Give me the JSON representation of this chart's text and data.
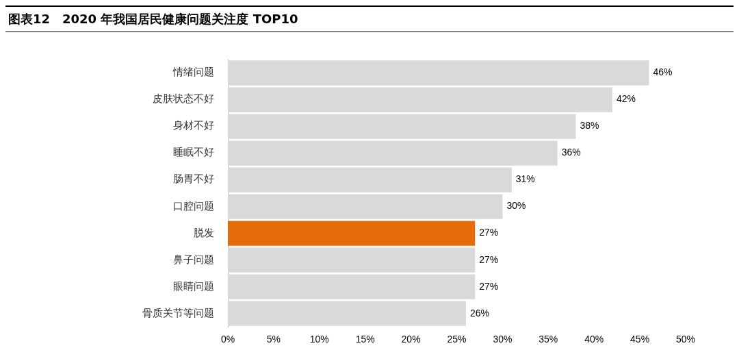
{
  "chart_data": {
    "type": "bar",
    "orientation": "horizontal",
    "title": "图表12　2020 年我国居民健康问题关注度 TOP10",
    "categories": [
      "情绪问题",
      "皮肤状态不好",
      "身材不好",
      "睡眠不好",
      "肠胃不好",
      "口腔问题",
      "脱发",
      "鼻子问题",
      "眼睛问题",
      "骨质关节等问题"
    ],
    "values": [
      46,
      42,
      38,
      36,
      31,
      30,
      27,
      27,
      27,
      26
    ],
    "colors": [
      "#d9d9d9",
      "#d9d9d9",
      "#d9d9d9",
      "#d9d9d9",
      "#d9d9d9",
      "#d9d9d9",
      "#e46c0a",
      "#d9d9d9",
      "#d9d9d9",
      "#d9d9d9"
    ],
    "value_labels": [
      "46%",
      "42%",
      "38%",
      "36%",
      "31%",
      "30%",
      "27%",
      "27%",
      "27%",
      "26%"
    ],
    "xlim": [
      0,
      50
    ],
    "xticks": [
      {
        "value": 0,
        "label": "0%"
      },
      {
        "value": 5,
        "label": "5%"
      },
      {
        "value": 10,
        "label": "10%"
      },
      {
        "value": 15,
        "label": "15%"
      },
      {
        "value": 20,
        "label": "20%"
      },
      {
        "value": 25,
        "label": "25%"
      },
      {
        "value": 30,
        "label": "30%"
      },
      {
        "value": 35,
        "label": "35%"
      },
      {
        "value": 40,
        "label": "40%"
      },
      {
        "value": 45,
        "label": "45%"
      },
      {
        "value": 50,
        "label": "50%"
      }
    ]
  }
}
